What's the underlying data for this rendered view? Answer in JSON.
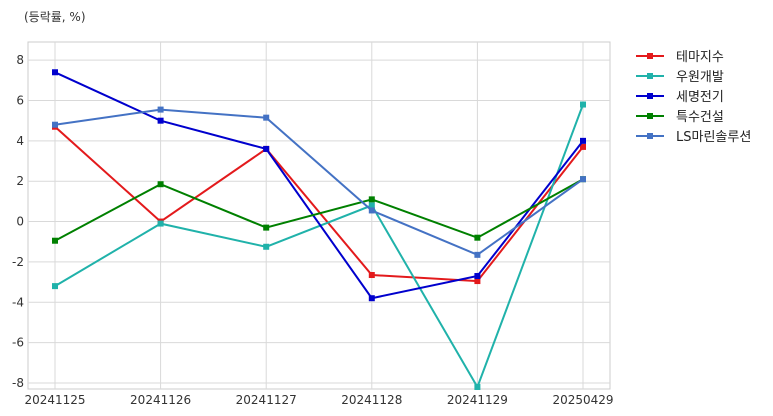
{
  "chart_data": {
    "type": "line",
    "title": "",
    "unit_label": "(등락률, %)",
    "xlabel": "",
    "ylabel": "",
    "x": [
      "20241125",
      "20241126",
      "20241127",
      "20241128",
      "20241129",
      "20250429"
    ],
    "ylim": [
      -8.3,
      8.9
    ],
    "yticks": [
      -8,
      -6,
      -4,
      -2,
      0,
      2,
      4,
      6,
      8
    ],
    "grid": true,
    "legend_position": "top-right-outside",
    "series": [
      {
        "name": "테마지수",
        "color": "#e31a1c",
        "values": [
          4.7,
          0.0,
          3.6,
          -2.65,
          -2.95,
          3.7
        ]
      },
      {
        "name": "우원개발",
        "color": "#20b2aa",
        "values": [
          -3.2,
          -0.1,
          -1.25,
          0.8,
          -8.2,
          5.8
        ]
      },
      {
        "name": "세명전기",
        "color": "#0000cd",
        "values": [
          7.4,
          5.0,
          3.6,
          -3.8,
          -2.7,
          4.0
        ]
      },
      {
        "name": "특수건설",
        "color": "#008000",
        "values": [
          -0.95,
          1.85,
          -0.3,
          1.1,
          -0.8,
          2.1
        ]
      },
      {
        "name": "LS마린솔루션",
        "color": "#4472c4",
        "values": [
          4.8,
          5.55,
          5.15,
          0.55,
          -1.65,
          2.1
        ]
      }
    ]
  }
}
